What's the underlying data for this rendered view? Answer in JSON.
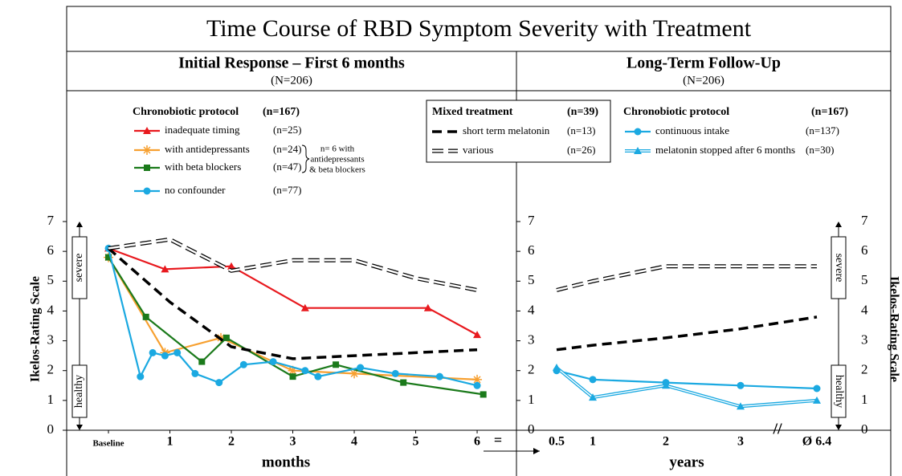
{
  "title": "Time Course of RBD Symptom Severity with Treatment",
  "chart_data": [
    {
      "type": "line",
      "title": "Initial Response – First 6 months",
      "subtitle": "(N=206)",
      "x_label": "months",
      "y_label": "Ikelos-Rating Scale",
      "xlim": [
        -0.68,
        6.64
      ],
      "xticks": [
        {
          "value": 0,
          "label": "Baseline"
        },
        1,
        2,
        3,
        4,
        5,
        6
      ],
      "ylim": [
        0,
        7
      ],
      "yticks": [
        0,
        1,
        2,
        3,
        4,
        5,
        6,
        7
      ],
      "severity_labels": [
        "severe",
        "healthy"
      ],
      "legend_groups": [
        {
          "name": "Chronobiotic protocol",
          "count": "(n=167)"
        },
        {
          "name": "Mixed treatment",
          "count": "(n=39)"
        }
      ],
      "annotation": [
        "n= 6 with",
        "antidepressants",
        "& beta blockers"
      ],
      "series": [
        {
          "name": "inadequate timing",
          "count": "(n=25)",
          "group": 0,
          "color": "#e8191e",
          "marker": "triangle",
          "x": [
            0,
            0.92,
            2,
            3.2,
            5.2,
            6
          ],
          "values": [
            6.1,
            5.4,
            5.5,
            4.1,
            4.1,
            3.2
          ]
        },
        {
          "name": "with antidepressants",
          "count": "(n=24)",
          "group": 0,
          "color": "#f7a030",
          "marker": "asterisk",
          "x": [
            0,
            0.92,
            1.83,
            3,
            4,
            6
          ],
          "values": [
            5.8,
            2.6,
            3.1,
            2.0,
            1.9,
            1.7
          ]
        },
        {
          "name": "with beta blockers",
          "count": "(n=47)",
          "group": 0,
          "color": "#1b7a1b",
          "marker": "square",
          "x": [
            0,
            0.61,
            1.52,
            1.92,
            3.0,
            3.7,
            4.8,
            6.1
          ],
          "values": [
            5.8,
            3.8,
            2.3,
            3.1,
            1.8,
            2.2,
            1.6,
            1.2
          ]
        },
        {
          "name": "no confounder",
          "count": "(n=77)",
          "group": 0,
          "color": "#1ba9e1",
          "marker": "circle",
          "x": [
            0,
            0.52,
            0.72,
            0.92,
            1.12,
            1.41,
            1.8,
            2.2,
            2.68,
            3.2,
            3.41,
            4.1,
            4.67,
            5.39,
            6.0
          ],
          "values": [
            6.1,
            1.8,
            2.6,
            2.5,
            2.6,
            1.9,
            1.6,
            2.2,
            2.3,
            2.0,
            1.8,
            2.1,
            1.9,
            1.8,
            1.5
          ]
        },
        {
          "name": "short term melatonin",
          "count": "(n=13)",
          "group": 1,
          "color": "#000000",
          "marker": "none",
          "dash": "solid-dash",
          "x": [
            0,
            1,
            2,
            3,
            4,
            5,
            6
          ],
          "values": [
            6.1,
            4.3,
            2.8,
            2.4,
            2.5,
            2.6,
            2.7
          ]
        },
        {
          "name": "various",
          "count": "(n=26)",
          "group": 1,
          "color": "#000000",
          "marker": "none",
          "dash": "hollow-dash",
          "x": [
            0,
            1,
            2,
            3,
            4,
            5,
            6
          ],
          "values": [
            6.1,
            6.4,
            5.35,
            5.7,
            5.7,
            5.1,
            4.7
          ]
        }
      ]
    },
    {
      "type": "line",
      "title": "Long-Term Follow-Up",
      "subtitle": "(N=206)",
      "x_label": "years",
      "y_label": "Ikelos-Rating Scale",
      "categories": [
        "0.5",
        "1",
        "2",
        "3",
        "Ø 6.4"
      ],
      "ylim": [
        0,
        7
      ],
      "yticks": [
        0,
        1,
        2,
        3,
        4,
        5,
        6,
        7
      ],
      "severity_labels": [
        "severe",
        "healthy"
      ],
      "legend_groups": [
        {
          "name": "Chronobiotic protocol",
          "count": "(n=167)"
        }
      ],
      "series": [
        {
          "color": "#000000",
          "marker": "none",
          "dash": "solid-dash",
          "values": [
            2.7,
            2.85,
            3.1,
            3.4,
            3.8
          ]
        },
        {
          "color": "#000000",
          "marker": "none",
          "dash": "hollow-dash",
          "values": [
            4.7,
            5.0,
            5.5,
            5.5,
            5.5
          ]
        },
        {
          "name": "continuous intake",
          "count": "(n=137)",
          "group": 0,
          "color": "#1ba9e1",
          "marker": "circle",
          "values": [
            2.0,
            1.7,
            1.6,
            1.5,
            1.4
          ]
        },
        {
          "name": "melatonin stopped after 6 months",
          "count": "(n=30)",
          "group": 0,
          "color": "#1ba9e1",
          "marker": "triangle",
          "dash": "double",
          "values": [
            2.1,
            1.1,
            1.5,
            0.8,
            1.0
          ]
        }
      ]
    }
  ]
}
